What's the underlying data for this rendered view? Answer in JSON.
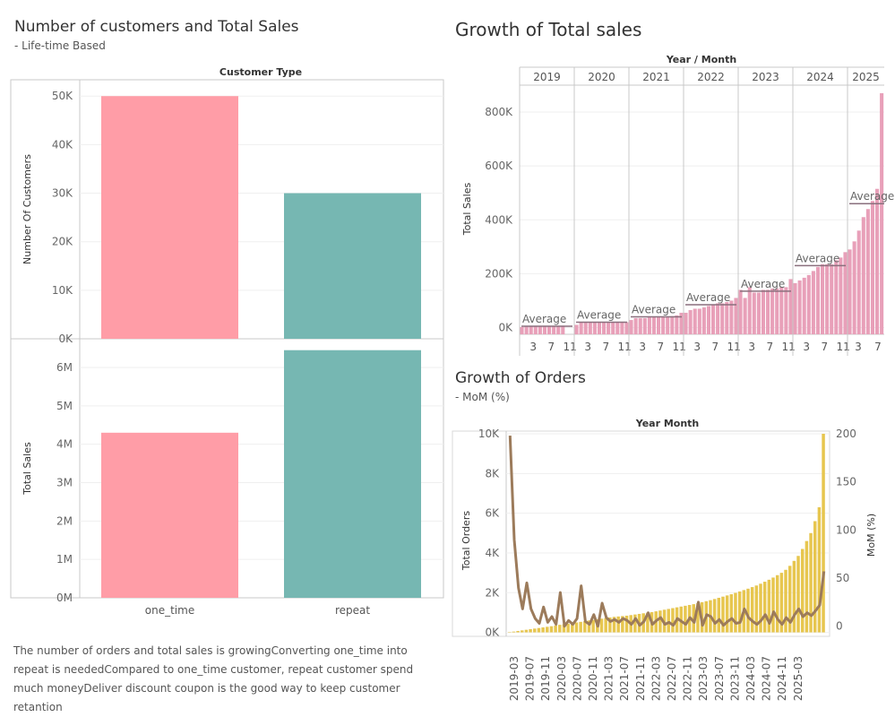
{
  "left_panel": {
    "title": "Number of customers and Total Sales",
    "subtitle": "- Life-time Based",
    "header": "Customer Type",
    "note": "The number of orders and total sales is growingConverting one_time into repeat is neededCompared to one_time customer, repeat customer spend much moneyDeliver discount coupon is the good way to keep customer retantion"
  },
  "right_top_panel": {
    "title": "Growth of Total sales",
    "header": "Year / Month"
  },
  "right_bottom_panel": {
    "title": "Growth of Orders",
    "subtitle": "- MoM (%)",
    "header": "Year Month"
  },
  "colors": {
    "one_time": "#ff9da7",
    "repeat": "#76b7b2",
    "sales": "#e8a0b9",
    "orders": "#e7c64f",
    "mom": "#9c7b5b",
    "average_line": "#8a6f7d"
  },
  "chart_data": [
    {
      "type": "bar",
      "categories": [
        "one_time",
        "repeat"
      ],
      "values": [
        50000,
        30000
      ],
      "ylabel": "Number Of Customers",
      "ylim": [
        0,
        53000
      ],
      "yticks": [
        "0K",
        "10K",
        "20K",
        "30K",
        "40K",
        "50K"
      ],
      "ytick_values": [
        0,
        10000,
        20000,
        30000,
        40000,
        50000
      ]
    },
    {
      "type": "bar",
      "categories": [
        "one_time",
        "repeat"
      ],
      "values": [
        4300000,
        6450000
      ],
      "ylabel": "Total Sales",
      "ylim": [
        0,
        6700000
      ],
      "yticks": [
        "0M",
        "1M",
        "2M",
        "3M",
        "4M",
        "5M",
        "6M"
      ],
      "ytick_values": [
        0,
        1000000,
        2000000,
        3000000,
        4000000,
        5000000,
        6000000
      ]
    },
    {
      "type": "bar",
      "ylabel": "Total Sales",
      "ylim": [
        -25000,
        900000
      ],
      "yticks": [
        "0K",
        "200K",
        "400K",
        "600K",
        "800K"
      ],
      "ytick_values": [
        0,
        200000,
        400000,
        600000,
        800000
      ],
      "years": [
        {
          "year": "2019",
          "ticks": [
            "3",
            "7",
            "11"
          ],
          "average_label": "Average",
          "average": 5000,
          "values": [
            2000,
            3000,
            3500,
            4000,
            4000,
            4500,
            5000,
            5500,
            6000,
            7000
          ]
        },
        {
          "year": "2020",
          "ticks": [
            "3",
            "7",
            "11"
          ],
          "average_label": "Average",
          "average": 20000,
          "values": [
            10000,
            20000,
            20000,
            20000,
            20000,
            20000,
            20000,
            20000,
            20000,
            20000,
            20000,
            20000
          ]
        },
        {
          "year": "2021",
          "ticks": [
            "3",
            "7",
            "11"
          ],
          "average_label": "Average",
          "average": 40000,
          "values": [
            28000,
            35000,
            35000,
            35000,
            38000,
            40000,
            40000,
            40000,
            40000,
            42000,
            45000,
            55000
          ]
        },
        {
          "year": "2022",
          "ticks": [
            "3",
            "7",
            "11"
          ],
          "average_label": "Average",
          "average": 85000,
          "values": [
            55000,
            65000,
            70000,
            70000,
            75000,
            80000,
            85000,
            90000,
            90000,
            95000,
            100000,
            110000
          ]
        },
        {
          "year": "2023",
          "ticks": [
            "3",
            "7",
            "11"
          ],
          "average_label": "Average",
          "average": 135000,
          "values": [
            140000,
            110000,
            150000,
            130000,
            130000,
            140000,
            140000,
            145000,
            145000,
            150000,
            150000,
            180000
          ]
        },
        {
          "year": "2024",
          "ticks": [
            "3",
            "7",
            "11"
          ],
          "average_label": "Average",
          "average": 230000,
          "values": [
            165000,
            175000,
            185000,
            195000,
            210000,
            225000,
            235000,
            235000,
            235000,
            250000,
            260000,
            280000
          ]
        },
        {
          "year": "2025",
          "ticks": [
            "3",
            "7"
          ],
          "average_label": "Average",
          "average": 460000,
          "values": [
            290000,
            320000,
            360000,
            410000,
            440000,
            470000,
            515000,
            870000
          ]
        }
      ]
    },
    {
      "type": "bar+line",
      "ylabel": "Total Orders",
      "y2label": "MoM (%)",
      "ylim": [
        -200,
        10000
      ],
      "y2lim": [
        -10.5,
        200
      ],
      "yticks": [
        "0K",
        "2K",
        "4K",
        "6K",
        "8K",
        "10K"
      ],
      "ytick_values": [
        0,
        2000,
        4000,
        6000,
        8000,
        10000
      ],
      "y2ticks": [
        "0",
        "50",
        "100",
        "150",
        "200"
      ],
      "y2tick_values": [
        0,
        50,
        100,
        150,
        200
      ],
      "xticks": [
        "2019-03",
        "2019-07",
        "2019-11",
        "2020-03",
        "2020-07",
        "2020-11",
        "2021-03",
        "2021-07",
        "2021-11",
        "2022-03",
        "2022-07",
        "2022-11",
        "2023-03",
        "2023-07",
        "2023-11",
        "2024-03",
        "2024-07",
        "2024-11",
        "2025-03"
      ],
      "orders": [
        20,
        40,
        70,
        100,
        130,
        160,
        190,
        220,
        250,
        280,
        310,
        340,
        380,
        410,
        440,
        470,
        500,
        530,
        560,
        600,
        630,
        660,
        690,
        720,
        750,
        780,
        800,
        820,
        840,
        870,
        900,
        930,
        960,
        990,
        1020,
        1060,
        1100,
        1140,
        1180,
        1220,
        1260,
        1300,
        1340,
        1380,
        1420,
        1470,
        1520,
        1570,
        1620,
        1680,
        1740,
        1800,
        1860,
        1920,
        1990,
        2060,
        2130,
        2200,
        2280,
        2360,
        2450,
        2550,
        2650,
        2760,
        2880,
        3000,
        3150,
        3350,
        3600,
        3850,
        4200,
        4600,
        5000,
        5600,
        6300,
        10000
      ],
      "mom": [
        198,
        90,
        40,
        18,
        45,
        18,
        8,
        3,
        20,
        4,
        10,
        2,
        35,
        0,
        6,
        2,
        8,
        42,
        5,
        2,
        12,
        0,
        24,
        9,
        5,
        7,
        4,
        8,
        6,
        2,
        8,
        1,
        5,
        14,
        2,
        6,
        9,
        2,
        4,
        1,
        8,
        5,
        2,
        9,
        4,
        25,
        1,
        12,
        10,
        3,
        7,
        1,
        5,
        8,
        3,
        4,
        18,
        9,
        5,
        2,
        6,
        12,
        3,
        15,
        7,
        2,
        9,
        4,
        12,
        18,
        10,
        14,
        11,
        16,
        22,
        57
      ]
    }
  ]
}
